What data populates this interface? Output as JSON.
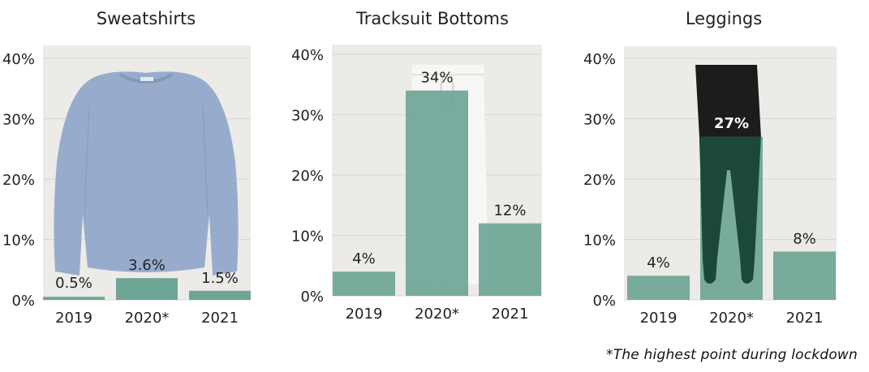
{
  "colors": {
    "bar": "#6ea596",
    "plot_bg": "#ecebe7",
    "grid": "#d8d7d3",
    "text": "#222222",
    "sweatshirt": "#97accd",
    "pants_white": "#f7f7f5",
    "leggings_black": "#1c1c1c",
    "leggings_dark_green": "#143f33"
  },
  "footnote": "*The highest point during lockdown",
  "chart_data": [
    {
      "type": "bar",
      "title": "Sweatshirts",
      "categories": [
        "2019",
        "2020*",
        "2021"
      ],
      "values": [
        0.5,
        3.6,
        1.5
      ],
      "value_labels": [
        "0.5%",
        "3.6%",
        "1.5%"
      ],
      "ylim": [
        0,
        40
      ],
      "yticks": [
        0,
        10,
        20,
        30,
        40
      ],
      "ytick_labels": [
        "0%",
        "10%",
        "20%",
        "30%",
        "40%"
      ],
      "grid": true,
      "background_icon": "sweatshirt-photo"
    },
    {
      "type": "bar",
      "title": "Tracksuit Bottoms",
      "categories": [
        "2019",
        "2020*",
        "2021"
      ],
      "values": [
        4,
        34,
        12
      ],
      "value_labels": [
        "4%",
        "34%",
        "12%"
      ],
      "ylim": [
        0,
        40
      ],
      "yticks": [
        0,
        10,
        20,
        30,
        40
      ],
      "ytick_labels": [
        "0%",
        "10%",
        "20%",
        "30%",
        "40%"
      ],
      "grid": true,
      "background_icon": "tracksuit-bottoms-photo"
    },
    {
      "type": "bar",
      "title": "Leggings",
      "categories": [
        "2019",
        "2020*",
        "2021"
      ],
      "values": [
        4,
        27,
        8
      ],
      "value_labels": [
        "4%",
        "27%",
        "8%"
      ],
      "ylim": [
        0,
        40
      ],
      "yticks": [
        0,
        10,
        20,
        30,
        40
      ],
      "ytick_labels": [
        "0%",
        "10%",
        "20%",
        "30%",
        "40%"
      ],
      "grid": true,
      "background_icon": "leggings-photo"
    }
  ]
}
